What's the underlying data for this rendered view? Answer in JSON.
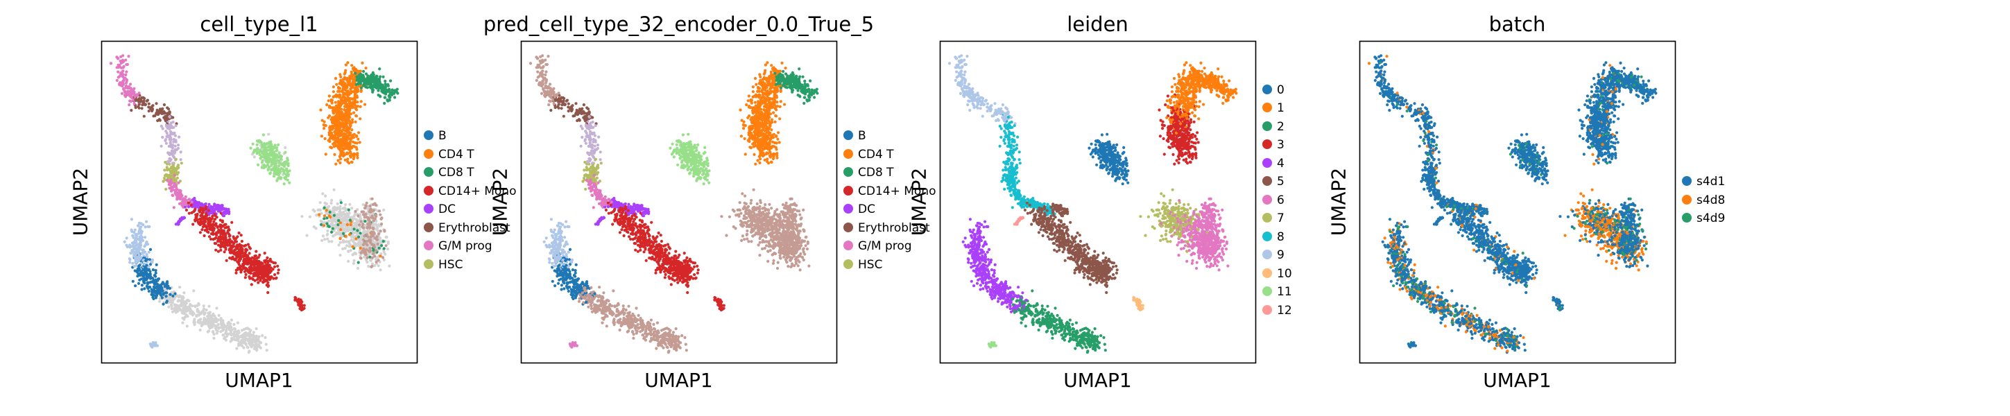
{
  "chart_data": [
    {
      "type": "scatter",
      "title": "cell_type_l1",
      "xlabel": "UMAP1",
      "ylabel": "UMAP2",
      "legend_position": "right",
      "grid": false,
      "legend": [
        {
          "label": "B",
          "color": "#1f77b4"
        },
        {
          "label": "CD4 T",
          "color": "#ff7f0e"
        },
        {
          "label": "CD8 T",
          "color": "#279e68"
        },
        {
          "label": "CD14+ Mono",
          "color": "#d62728"
        },
        {
          "label": "DC",
          "color": "#aa40fc"
        },
        {
          "label": "Erythroblast",
          "color": "#8c564b"
        },
        {
          "label": "G/M prog",
          "color": "#e377c2"
        },
        {
          "label": "HSC",
          "color": "#b5bd61"
        }
      ]
    },
    {
      "type": "scatter",
      "title": "pred_cell_type_32_encoder_0.0_True_5",
      "xlabel": "UMAP1",
      "ylabel": "UMAP2",
      "legend_position": "right",
      "grid": false,
      "legend": [
        {
          "label": "B",
          "color": "#1f77b4"
        },
        {
          "label": "CD4 T",
          "color": "#ff7f0e"
        },
        {
          "label": "CD8 T",
          "color": "#279e68"
        },
        {
          "label": "CD14+ Mono",
          "color": "#d62728"
        },
        {
          "label": "DC",
          "color": "#aa40fc"
        },
        {
          "label": "Erythroblast",
          "color": "#8c564b"
        },
        {
          "label": "G/M prog",
          "color": "#e377c2"
        },
        {
          "label": "HSC",
          "color": "#b5bd61"
        }
      ]
    },
    {
      "type": "scatter",
      "title": "leiden",
      "xlabel": "UMAP1",
      "ylabel": "UMAP2",
      "legend_position": "right",
      "grid": false,
      "legend": [
        {
          "label": "0",
          "color": "#1f77b4"
        },
        {
          "label": "1",
          "color": "#ff7f0e"
        },
        {
          "label": "2",
          "color": "#279e68"
        },
        {
          "label": "3",
          "color": "#d62728"
        },
        {
          "label": "4",
          "color": "#aa40fc"
        },
        {
          "label": "5",
          "color": "#8c564b"
        },
        {
          "label": "6",
          "color": "#e377c2"
        },
        {
          "label": "7",
          "color": "#b5bd61"
        },
        {
          "label": "8",
          "color": "#17becf"
        },
        {
          "label": "9",
          "color": "#aec7e8"
        },
        {
          "label": "10",
          "color": "#ffbb78"
        },
        {
          "label": "11",
          "color": "#98df8a"
        },
        {
          "label": "12",
          "color": "#ff9896"
        }
      ]
    },
    {
      "type": "scatter",
      "title": "batch",
      "xlabel": "UMAP1",
      "ylabel": "UMAP2",
      "legend_position": "right",
      "grid": false,
      "legend": [
        {
          "label": "s4d1",
          "color": "#1f77b4"
        },
        {
          "label": "s4d8",
          "color": "#ff7f0e"
        },
        {
          "label": "s4d9",
          "color": "#279e68"
        }
      ]
    }
  ],
  "na_color": "#d3d3d3"
}
